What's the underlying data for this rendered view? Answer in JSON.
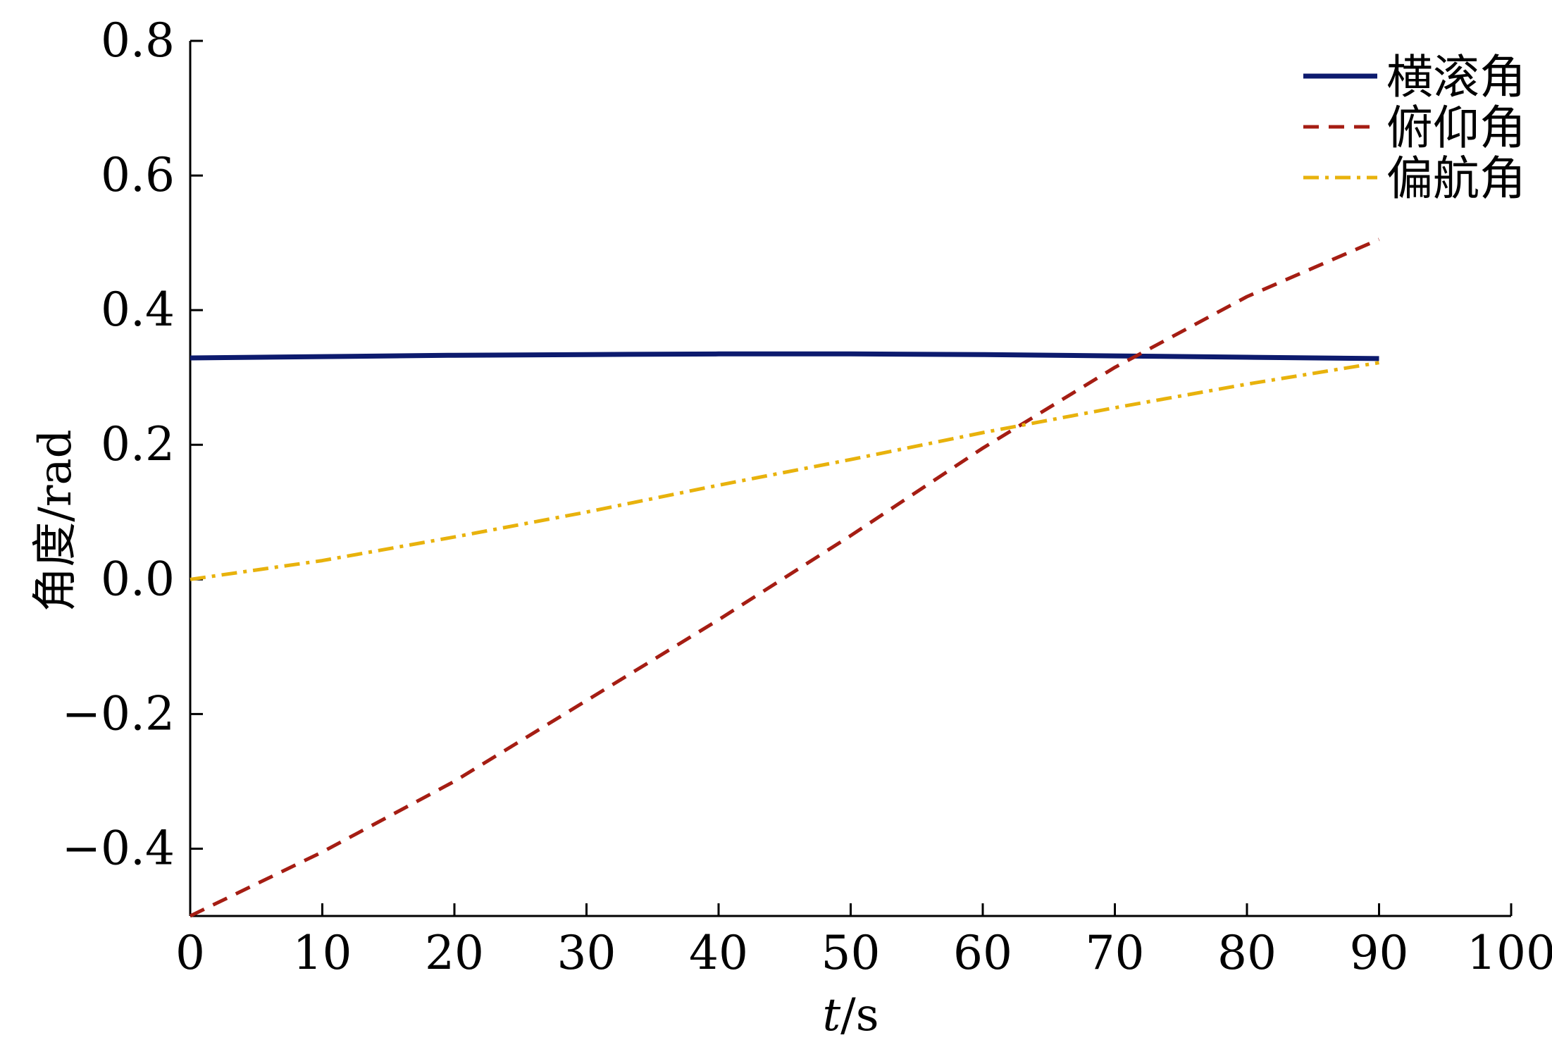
{
  "chart_data": {
    "type": "line",
    "title": "",
    "xlabel_italic": "t",
    "xlabel_unit": "/s",
    "ylabel": "角度/rad",
    "xlim": [
      0,
      100
    ],
    "ylim": [
      -0.5,
      0.8
    ],
    "xticks": [
      0,
      10,
      20,
      30,
      40,
      50,
      60,
      70,
      80,
      90,
      100
    ],
    "yticks": [
      -0.4,
      -0.2,
      0.0,
      0.2,
      0.4,
      0.6,
      0.8
    ],
    "xtick_labels": [
      "0",
      "10",
      "20",
      "30",
      "40",
      "50",
      "60",
      "70",
      "80",
      "90",
      "100"
    ],
    "ytick_labels": [
      "−0.4",
      "−0.2",
      "0.0",
      "0.2",
      "0.4",
      "0.6",
      "0.8"
    ],
    "grid": false,
    "legend_position": "top-right",
    "series": [
      {
        "name": "横滚角",
        "style": "solid",
        "color": "#0d1b6e",
        "x": [
          0,
          10,
          20,
          30,
          40,
          50,
          60,
          70,
          80,
          90
        ],
        "y": [
          0.329,
          0.331,
          0.333,
          0.334,
          0.335,
          0.335,
          0.334,
          0.332,
          0.33,
          0.328
        ]
      },
      {
        "name": "俯仰角",
        "style": "dashed",
        "color": "#a51d13",
        "x": [
          0,
          10,
          20,
          30,
          40,
          50,
          60,
          70,
          80,
          90
        ],
        "y": [
          -0.5,
          -0.405,
          -0.3,
          -0.18,
          -0.06,
          0.065,
          0.195,
          0.315,
          0.42,
          0.505
        ]
      },
      {
        "name": "偏航角",
        "style": "dashdot",
        "color": "#e8b20c",
        "x": [
          0,
          10,
          20,
          30,
          40,
          50,
          60,
          70,
          80,
          90
        ],
        "y": [
          0.0,
          0.028,
          0.063,
          0.1,
          0.14,
          0.178,
          0.218,
          0.255,
          0.29,
          0.322
        ]
      }
    ]
  }
}
